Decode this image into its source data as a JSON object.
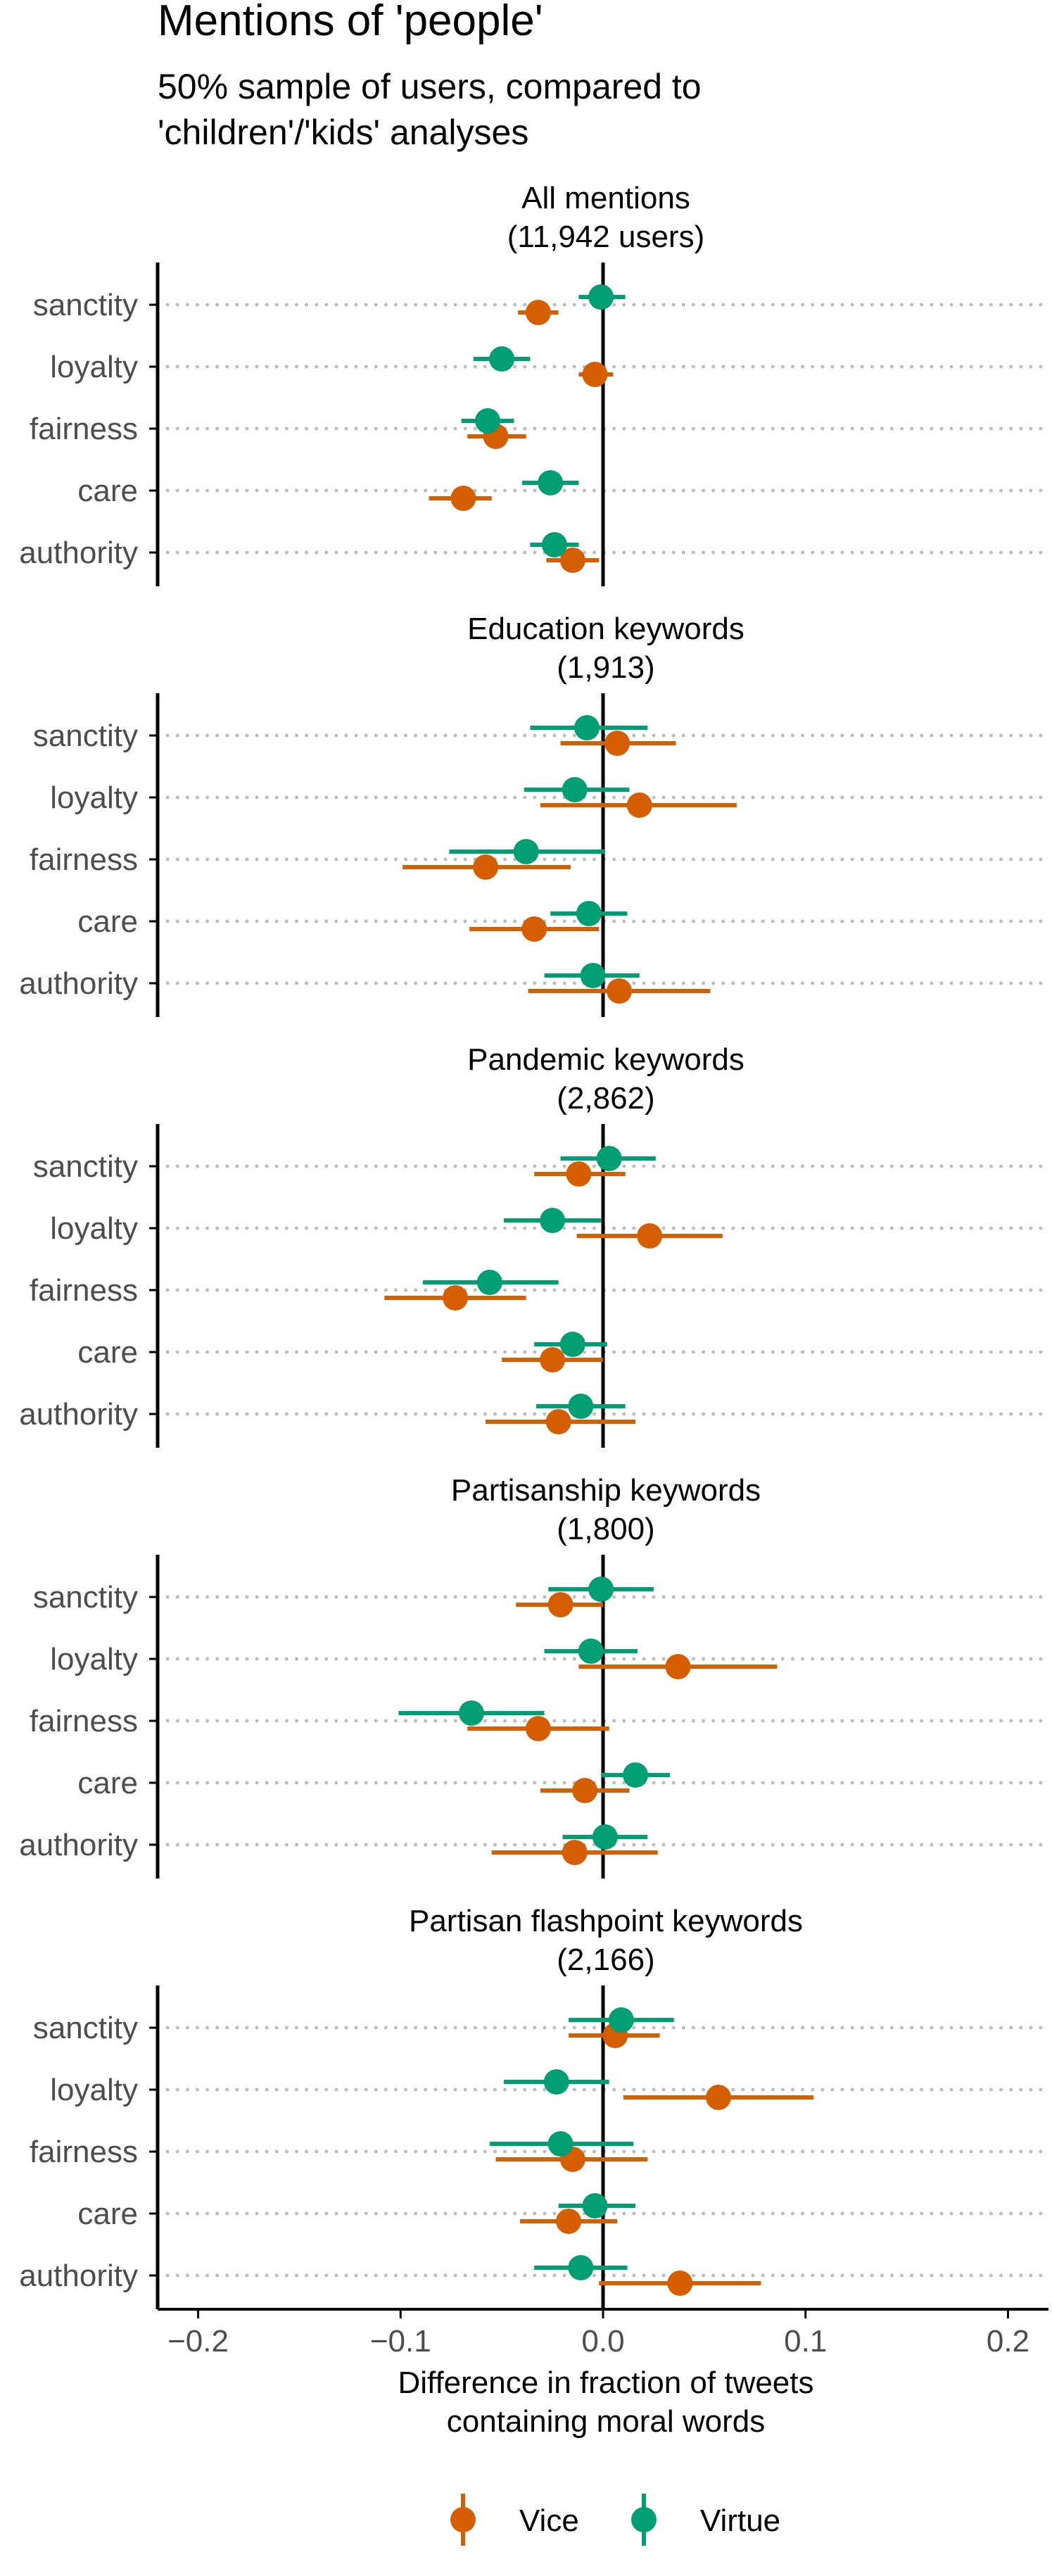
{
  "chart_data": {
    "type": "dot-errorbar",
    "title": "Mentions of 'people'",
    "subtitle_lines": [
      "50% sample of users, compared to",
      "'children'/'kids' analyses"
    ],
    "xlabel_lines": [
      "Difference in fraction of tweets",
      "containing moral words"
    ],
    "xlim": [
      -0.22,
      0.22
    ],
    "xticks": [
      -0.2,
      -0.1,
      0.0,
      0.1,
      0.2
    ],
    "xtick_labels": [
      "−0.2",
      "−0.1",
      "0.0",
      "0.1",
      "0.2"
    ],
    "categories": [
      "sanctity",
      "loyalty",
      "fairness",
      "care",
      "authority"
    ],
    "legend": {
      "position": "bottom",
      "items": [
        {
          "name": "Vice",
          "color": "#D55E00"
        },
        {
          "name": "Virtue",
          "color": "#009E73"
        }
      ]
    },
    "panels": [
      {
        "title_lines": [
          "All mentions",
          "(11,942 users)"
        ],
        "series": [
          {
            "name": "Vice",
            "points": [
              {
                "category": "sanctity",
                "value": -0.032,
                "low": -0.042,
                "high": -0.022
              },
              {
                "category": "loyalty",
                "value": -0.004,
                "low": -0.012,
                "high": 0.005
              },
              {
                "category": "fairness",
                "value": -0.053,
                "low": -0.067,
                "high": -0.038
              },
              {
                "category": "care",
                "value": -0.069,
                "low": -0.086,
                "high": -0.055
              },
              {
                "category": "authority",
                "value": -0.015,
                "low": -0.028,
                "high": -0.002
              }
            ]
          },
          {
            "name": "Virtue",
            "points": [
              {
                "category": "sanctity",
                "value": -0.001,
                "low": -0.012,
                "high": 0.011
              },
              {
                "category": "loyalty",
                "value": -0.05,
                "low": -0.064,
                "high": -0.036
              },
              {
                "category": "fairness",
                "value": -0.057,
                "low": -0.07,
                "high": -0.044
              },
              {
                "category": "care",
                "value": -0.026,
                "low": -0.04,
                "high": -0.012
              },
              {
                "category": "authority",
                "value": -0.024,
                "low": -0.036,
                "high": -0.012
              }
            ]
          }
        ]
      },
      {
        "title_lines": [
          "Education keywords",
          "(1,913)"
        ],
        "series": [
          {
            "name": "Vice",
            "points": [
              {
                "category": "sanctity",
                "value": 0.007,
                "low": -0.021,
                "high": 0.036
              },
              {
                "category": "loyalty",
                "value": 0.018,
                "low": -0.031,
                "high": 0.066
              },
              {
                "category": "fairness",
                "value": -0.058,
                "low": -0.099,
                "high": -0.016
              },
              {
                "category": "care",
                "value": -0.034,
                "low": -0.066,
                "high": -0.002
              },
              {
                "category": "authority",
                "value": 0.008,
                "low": -0.037,
                "high": 0.053
              }
            ]
          },
          {
            "name": "Virtue",
            "points": [
              {
                "category": "sanctity",
                "value": -0.008,
                "low": -0.036,
                "high": 0.022
              },
              {
                "category": "loyalty",
                "value": -0.014,
                "low": -0.039,
                "high": 0.013
              },
              {
                "category": "fairness",
                "value": -0.038,
                "low": -0.076,
                "high": 0.001
              },
              {
                "category": "care",
                "value": -0.007,
                "low": -0.026,
                "high": 0.012
              },
              {
                "category": "authority",
                "value": -0.005,
                "low": -0.029,
                "high": 0.018
              }
            ]
          }
        ]
      },
      {
        "title_lines": [
          "Pandemic keywords",
          "(2,862)"
        ],
        "series": [
          {
            "name": "Vice",
            "points": [
              {
                "category": "sanctity",
                "value": -0.012,
                "low": -0.034,
                "high": 0.011
              },
              {
                "category": "loyalty",
                "value": 0.023,
                "low": -0.013,
                "high": 0.059
              },
              {
                "category": "fairness",
                "value": -0.073,
                "low": -0.108,
                "high": -0.038
              },
              {
                "category": "care",
                "value": -0.025,
                "low": -0.05,
                "high": 0.0
              },
              {
                "category": "authority",
                "value": -0.022,
                "low": -0.058,
                "high": 0.016
              }
            ]
          },
          {
            "name": "Virtue",
            "points": [
              {
                "category": "sanctity",
                "value": 0.003,
                "low": -0.021,
                "high": 0.026
              },
              {
                "category": "loyalty",
                "value": -0.025,
                "low": -0.049,
                "high": -0.001
              },
              {
                "category": "fairness",
                "value": -0.056,
                "low": -0.089,
                "high": -0.022
              },
              {
                "category": "care",
                "value": -0.015,
                "low": -0.034,
                "high": 0.002
              },
              {
                "category": "authority",
                "value": -0.011,
                "low": -0.033,
                "high": 0.011
              }
            ]
          }
        ]
      },
      {
        "title_lines": [
          "Partisanship keywords",
          "(1,800)"
        ],
        "series": [
          {
            "name": "Vice",
            "points": [
              {
                "category": "sanctity",
                "value": -0.021,
                "low": -0.043,
                "high": 0.0
              },
              {
                "category": "loyalty",
                "value": 0.037,
                "low": -0.012,
                "high": 0.086
              },
              {
                "category": "fairness",
                "value": -0.032,
                "low": -0.067,
                "high": 0.003
              },
              {
                "category": "care",
                "value": -0.009,
                "low": -0.031,
                "high": 0.013
              },
              {
                "category": "authority",
                "value": -0.014,
                "low": -0.055,
                "high": 0.027
              }
            ]
          },
          {
            "name": "Virtue",
            "points": [
              {
                "category": "sanctity",
                "value": -0.001,
                "low": -0.027,
                "high": 0.025
              },
              {
                "category": "loyalty",
                "value": -0.006,
                "low": -0.029,
                "high": 0.017
              },
              {
                "category": "fairness",
                "value": -0.065,
                "low": -0.101,
                "high": -0.029
              },
              {
                "category": "care",
                "value": 0.016,
                "low": -0.001,
                "high": 0.033
              },
              {
                "category": "authority",
                "value": 0.001,
                "low": -0.02,
                "high": 0.022
              }
            ]
          }
        ]
      },
      {
        "title_lines": [
          "Partisan flashpoint keywords",
          "(2,166)"
        ],
        "series": [
          {
            "name": "Vice",
            "points": [
              {
                "category": "sanctity",
                "value": 0.006,
                "low": -0.017,
                "high": 0.028
              },
              {
                "category": "loyalty",
                "value": 0.057,
                "low": 0.01,
                "high": 0.104
              },
              {
                "category": "fairness",
                "value": -0.015,
                "low": -0.053,
                "high": 0.022
              },
              {
                "category": "care",
                "value": -0.017,
                "low": -0.041,
                "high": 0.007
              },
              {
                "category": "authority",
                "value": 0.038,
                "low": -0.002,
                "high": 0.078
              }
            ]
          },
          {
            "name": "Virtue",
            "points": [
              {
                "category": "sanctity",
                "value": 0.009,
                "low": -0.017,
                "high": 0.035
              },
              {
                "category": "loyalty",
                "value": -0.023,
                "low": -0.049,
                "high": 0.003
              },
              {
                "category": "fairness",
                "value": -0.021,
                "low": -0.056,
                "high": 0.015
              },
              {
                "category": "care",
                "value": -0.004,
                "low": -0.022,
                "high": 0.016
              },
              {
                "category": "authority",
                "value": -0.011,
                "low": -0.034,
                "high": 0.012
              }
            ]
          }
        ]
      }
    ]
  }
}
